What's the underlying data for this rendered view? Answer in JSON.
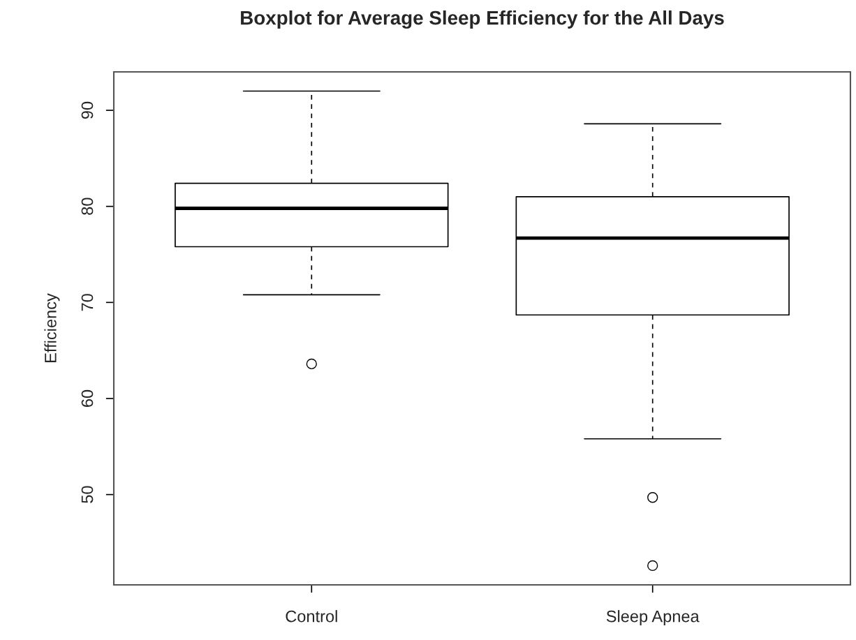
{
  "chart_data": {
    "type": "box",
    "title": "Boxplot for Average Sleep Efficiency for the All Days",
    "ylabel": "Efficiency",
    "categories": [
      "Control",
      "Sleep Apnea"
    ],
    "boxes": [
      {
        "low": 70.8,
        "q1": 75.8,
        "median": 79.8,
        "q3": 82.4,
        "high": 92,
        "outliers": [
          63.6
        ]
      },
      {
        "low": 55.8,
        "q1": 68.7,
        "median": 76.7,
        "q3": 81.0,
        "high": 88.6,
        "outliers": [
          49.7,
          42.6
        ]
      }
    ],
    "ylim": [
      40.6,
      94.0
    ],
    "yticks": [
      50,
      60,
      70,
      80,
      90
    ],
    "grid": false,
    "legend": false
  }
}
